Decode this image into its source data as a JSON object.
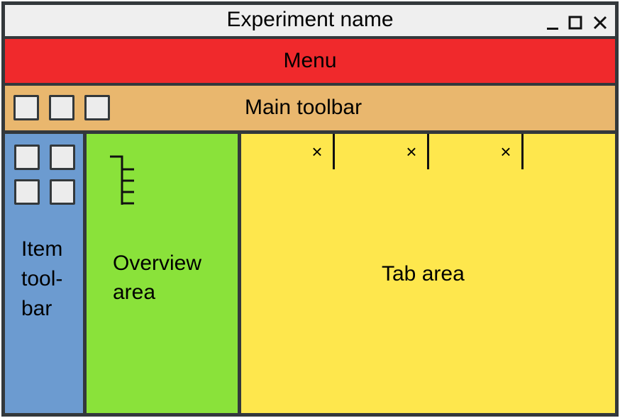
{
  "window": {
    "title": "Experiment name"
  },
  "menu": {
    "label": "Menu"
  },
  "main_toolbar": {
    "label": "Main toolbar",
    "button_count": 3
  },
  "item_toolbar": {
    "label": "Item tool-bar",
    "label_lines": [
      "Item",
      "tool-",
      "bar"
    ],
    "button_count": 4
  },
  "overview": {
    "label": "Overview area",
    "label_lines": [
      "Overview",
      "area"
    ],
    "icon": "tree-icon"
  },
  "tab_area": {
    "label": "Tab area",
    "tab_count": 3,
    "close_glyph": "×"
  },
  "colors": {
    "titlebar": "#efefef",
    "menu": "#f0292c",
    "main_toolbar": "#e9b76e",
    "item_toolbar": "#6c9bd0",
    "overview": "#8ae23a",
    "tab_area": "#fee74d",
    "border": "#33383b"
  }
}
